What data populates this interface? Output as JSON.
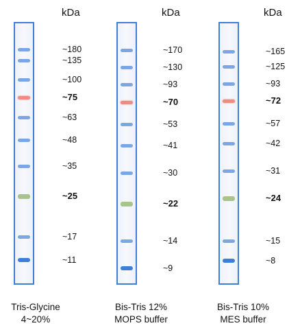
{
  "unit_label": "kDa",
  "colors": {
    "lane_border": "#3d7edb",
    "band_blue": "#7aa6e6",
    "band_red": "#f08b82",
    "band_green": "#a8c48a",
    "band_dark": "#3b7fd9"
  },
  "lanes": [
    {
      "caption_line1": "Tris-Glycine",
      "caption_line2": "4~20%",
      "markers": [
        {
          "label": "~180",
          "kda": 180,
          "bold": false,
          "color": "blue"
        },
        {
          "label": "~135",
          "kda": 135,
          "bold": false,
          "color": "blue"
        },
        {
          "label": "~100",
          "kda": 100,
          "bold": false,
          "color": "blue"
        },
        {
          "label": "~75",
          "kda": 75,
          "bold": true,
          "color": "red"
        },
        {
          "label": "~63",
          "kda": 63,
          "bold": false,
          "color": "blue"
        },
        {
          "label": "~48",
          "kda": 48,
          "bold": false,
          "color": "blue"
        },
        {
          "label": "~35",
          "kda": 35,
          "bold": false,
          "color": "blue"
        },
        {
          "label": "~25",
          "kda": 25,
          "bold": true,
          "color": "green"
        },
        {
          "label": "~17",
          "kda": 17,
          "bold": false,
          "color": "blue"
        },
        {
          "label": "~11",
          "kda": 11,
          "bold": false,
          "color": "dark"
        }
      ]
    },
    {
      "caption_line1": "Bis-Tris 12%",
      "caption_line2": "MOPS buffer",
      "markers": [
        {
          "label": "~170",
          "kda": 170,
          "bold": false,
          "color": "blue"
        },
        {
          "label": "~130",
          "kda": 130,
          "bold": false,
          "color": "blue"
        },
        {
          "label": "~93",
          "kda": 93,
          "bold": false,
          "color": "blue"
        },
        {
          "label": "~70",
          "kda": 70,
          "bold": true,
          "color": "red"
        },
        {
          "label": "~53",
          "kda": 53,
          "bold": false,
          "color": "blue"
        },
        {
          "label": "~41",
          "kda": 41,
          "bold": false,
          "color": "blue"
        },
        {
          "label": "~30",
          "kda": 30,
          "bold": false,
          "color": "blue"
        },
        {
          "label": "~22",
          "kda": 22,
          "bold": true,
          "color": "green"
        },
        {
          "label": "~14",
          "kda": 14,
          "bold": false,
          "color": "blue"
        },
        {
          "label": "~9",
          "kda": 9,
          "bold": false,
          "color": "dark"
        }
      ]
    },
    {
      "caption_line1": "Bis-Tris 10%",
      "caption_line2": "MES buffer",
      "markers": [
        {
          "label": "~165",
          "kda": 165,
          "bold": false,
          "color": "blue"
        },
        {
          "label": "~125",
          "kda": 125,
          "bold": false,
          "color": "blue"
        },
        {
          "label": "~93",
          "kda": 93,
          "bold": false,
          "color": "blue"
        },
        {
          "label": "~72",
          "kda": 72,
          "bold": true,
          "color": "red"
        },
        {
          "label": "~57",
          "kda": 57,
          "bold": false,
          "color": "blue"
        },
        {
          "label": "~42",
          "kda": 42,
          "bold": false,
          "color": "blue"
        },
        {
          "label": "~31",
          "kda": 31,
          "bold": false,
          "color": "blue"
        },
        {
          "label": "~24",
          "kda": 24,
          "bold": true,
          "color": "green"
        },
        {
          "label": "~15",
          "kda": 15,
          "bold": false,
          "color": "blue"
        },
        {
          "label": "~8",
          "kda": 8,
          "bold": false,
          "color": "dark"
        }
      ]
    }
  ]
}
